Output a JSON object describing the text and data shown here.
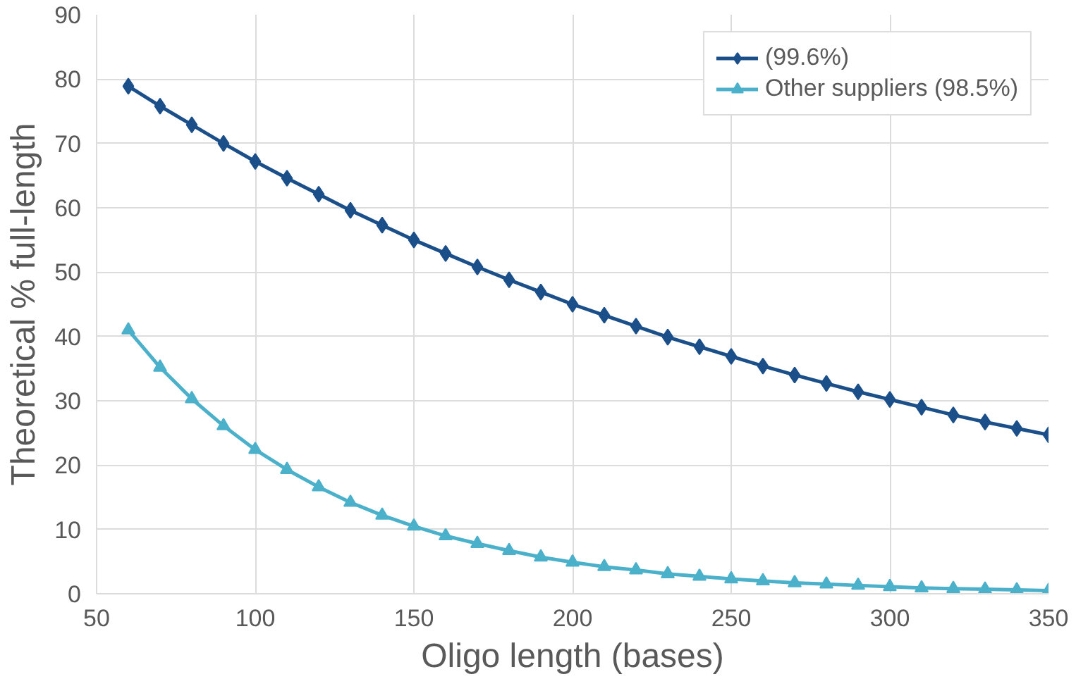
{
  "chart_data": {
    "type": "line",
    "xlabel": "Oligo length (bases)",
    "ylabel": "Theoretical % full-length",
    "x": [
      60,
      70,
      80,
      90,
      100,
      110,
      120,
      130,
      140,
      150,
      160,
      170,
      180,
      190,
      200,
      210,
      220,
      230,
      240,
      250,
      260,
      270,
      280,
      290,
      300,
      310,
      320,
      330,
      340,
      350
    ],
    "series": [
      {
        "name": "(99.6%)",
        "color": "#1b4f8a",
        "marker": "diamond",
        "values": [
          78.9,
          75.8,
          72.9,
          70.0,
          67.2,
          64.6,
          62.1,
          59.6,
          57.3,
          55.0,
          52.9,
          50.8,
          48.8,
          46.9,
          45.0,
          43.3,
          41.6,
          39.9,
          38.4,
          36.9,
          35.4,
          34.0,
          32.7,
          31.4,
          30.2,
          29.0,
          27.8,
          26.7,
          25.7,
          24.7
        ]
      },
      {
        "name": "Other suppliers (98.5%)",
        "color": "#4bb1cb",
        "marker": "triangle",
        "values": [
          41.0,
          35.2,
          30.3,
          26.1,
          22.4,
          19.3,
          16.6,
          14.2,
          12.2,
          10.5,
          9.0,
          7.8,
          6.7,
          5.7,
          4.9,
          4.2,
          3.7,
          3.1,
          2.7,
          2.3,
          2.0,
          1.7,
          1.5,
          1.3,
          1.1,
          0.9,
          0.8,
          0.7,
          0.6,
          0.5
        ]
      }
    ],
    "xlim": [
      50,
      350
    ],
    "ylim": [
      0,
      90
    ],
    "xticks": [
      50,
      100,
      150,
      200,
      250,
      300,
      350
    ],
    "yticks": [
      0,
      10,
      20,
      30,
      40,
      50,
      60,
      70,
      80,
      90
    ],
    "grid": true,
    "legend": "top right",
    "line_style": "solid"
  }
}
